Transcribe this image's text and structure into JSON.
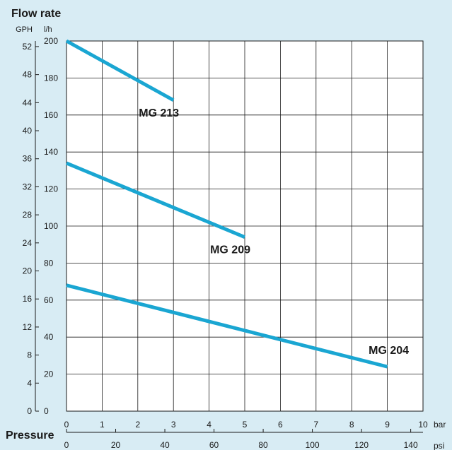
{
  "chart_data": {
    "type": "line",
    "title": "Flow rate",
    "xlabel": "Pressure",
    "x_unit": "bar",
    "x2_unit": "psi",
    "y_unit": "l/h",
    "y2_unit": "GPH",
    "xlim": [
      0,
      10
    ],
    "ylim": [
      0,
      200
    ],
    "x2lim": [
      0,
      145
    ],
    "y2lim": [
      0,
      52.8
    ],
    "x_ticks": [
      "0",
      "1",
      "2",
      "3",
      "4",
      "5",
      "6",
      "7",
      "8",
      "9",
      "10"
    ],
    "y_ticks": [
      "0",
      "20",
      "40",
      "60",
      "80",
      "100",
      "120",
      "140",
      "160",
      "180",
      "200"
    ],
    "x2_ticks": [
      "0",
      "20",
      "40",
      "60",
      "80",
      "100",
      "120",
      "140"
    ],
    "y2_ticks": [
      "0",
      "4",
      "8",
      "12",
      "16",
      "20",
      "24",
      "28",
      "32",
      "36",
      "40",
      "44",
      "48",
      "52"
    ],
    "grid": true,
    "series": [
      {
        "name": "MG 213",
        "x": [
          0,
          3
        ],
        "y": [
          200,
          168
        ]
      },
      {
        "name": "MG 209",
        "x": [
          0,
          5
        ],
        "y": [
          134,
          94
        ]
      },
      {
        "name": "MG 204",
        "x": [
          0,
          9
        ],
        "y": [
          68,
          24
        ]
      }
    ],
    "line_color": "#1aa6d2"
  }
}
